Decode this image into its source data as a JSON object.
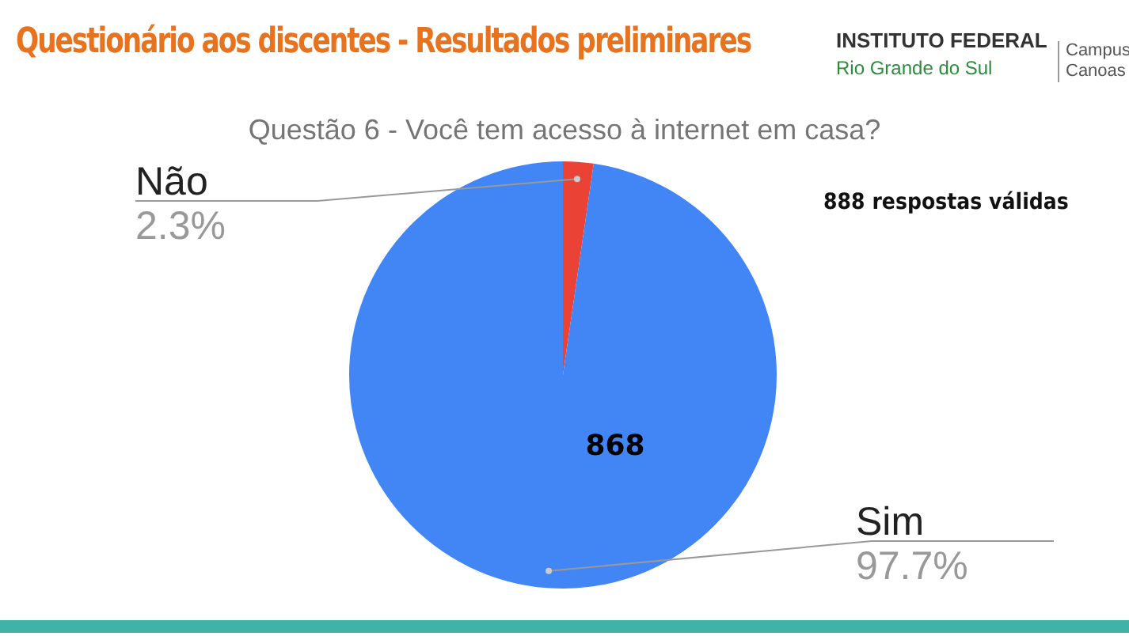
{
  "chart_data": {
    "type": "pie",
    "title": "Questão 6 - Você tem acesso à internet em casa?",
    "subtitle": "Questionário aos discentes - Resultados preliminares",
    "categories": [
      "Não",
      "Sim"
    ],
    "values": [
      2.3,
      97.7
    ],
    "colors": [
      "#ea4335",
      "#4285f4"
    ],
    "value_labels": [
      "2.3%",
      "97.7%"
    ],
    "annotations": [
      "888 respostas válidas",
      {
        "text": "868",
        "x": "Sim"
      },
      "INSTITUTO FEDERAL",
      "Rio Grande do Sul",
      "Campus Canoas"
    ],
    "legend": false
  }
}
